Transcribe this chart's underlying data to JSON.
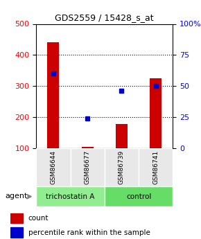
{
  "title": "GDS2559 / 15428_s_at",
  "samples": [
    "GSM86644",
    "GSM86677",
    "GSM86739",
    "GSM86741"
  ],
  "counts": [
    440,
    105,
    178,
    325
  ],
  "percentiles": [
    60,
    24,
    46,
    50
  ],
  "groups": [
    "trichostatin A",
    "trichostatin A",
    "control",
    "control"
  ],
  "group_colors": {
    "trichostatin A": "#90EE90",
    "control": "#90EE90"
  },
  "ylim_left": [
    100,
    500
  ],
  "ylim_right": [
    0,
    100
  ],
  "yticks_left": [
    100,
    200,
    300,
    400,
    500
  ],
  "yticks_right": [
    0,
    25,
    50,
    75,
    100
  ],
  "bar_color": "#cc0000",
  "dot_color": "#0000cc",
  "bg_color": "#e8e8e8",
  "legend_count_color": "#cc0000",
  "legend_pct_color": "#0000cc",
  "agent_label": "agent"
}
